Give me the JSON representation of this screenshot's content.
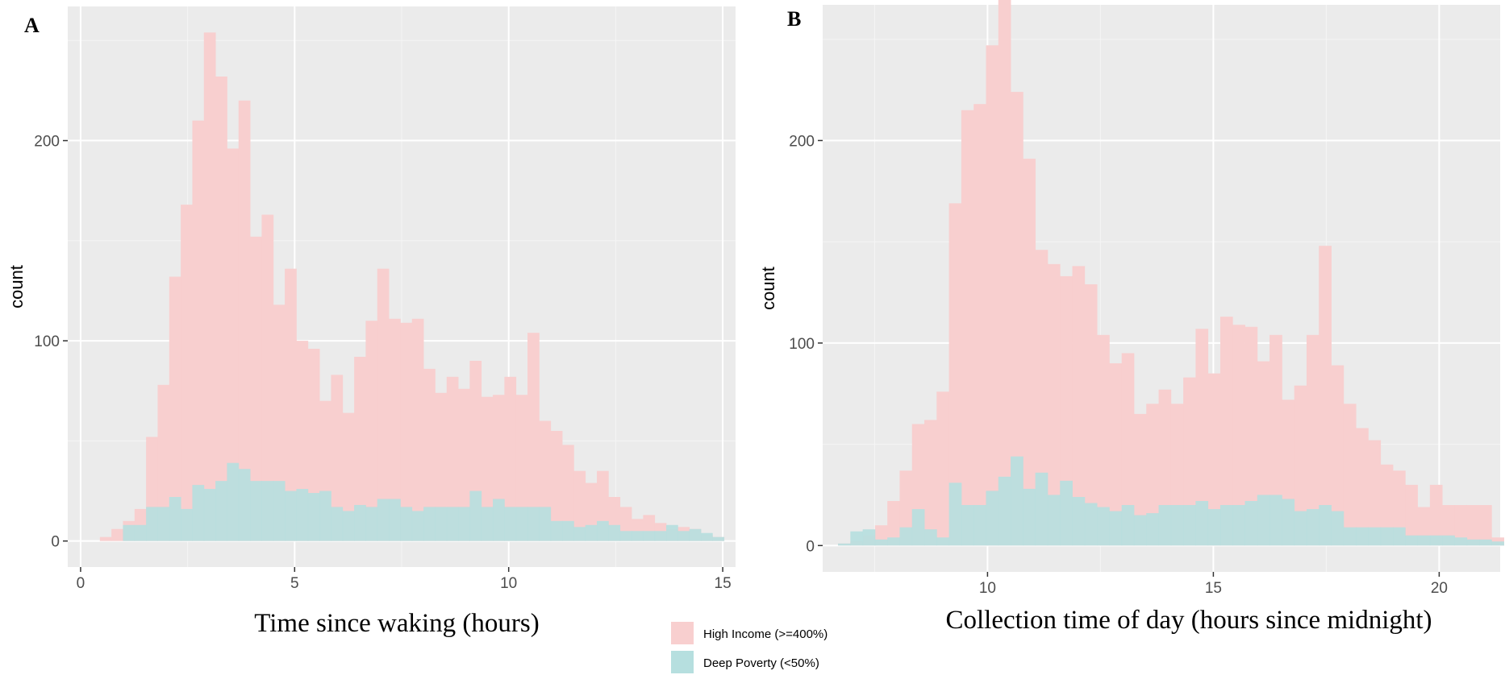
{
  "chart_data": [
    {
      "type": "bar",
      "panel": "A",
      "xlabel": "Time since waking (hours)",
      "ylabel": "count",
      "xlim": [
        -0.3,
        15.3
      ],
      "ylim": [
        -13,
        267
      ],
      "xticks": [
        0,
        5,
        10,
        15
      ],
      "yticks": [
        0,
        100,
        200
      ],
      "bin_start": 0.45,
      "bin_width": 0.27,
      "series": [
        {
          "name": "High Income (>=400%)",
          "color": "#f8cfcf",
          "values": [
            2,
            6,
            10,
            16,
            52,
            78,
            132,
            168,
            210,
            254,
            232,
            196,
            220,
            152,
            163,
            118,
            136,
            100,
            96,
            70,
            83,
            64,
            92,
            110,
            136,
            111,
            109,
            111,
            86,
            74,
            82,
            76,
            90,
            72,
            73,
            82,
            73,
            104,
            60,
            55,
            48,
            35,
            29,
            35,
            22,
            17,
            11,
            13,
            9,
            6,
            7,
            6,
            3,
            2
          ]
        },
        {
          "name": "Deep Poverty (<50%)",
          "color": "#b6dfdf",
          "values": [
            0,
            0,
            8,
            8,
            17,
            17,
            22,
            16,
            28,
            26,
            30,
            39,
            36,
            30,
            30,
            30,
            25,
            26,
            24,
            25,
            17,
            15,
            18,
            17,
            21,
            21,
            17,
            15,
            17,
            17,
            17,
            17,
            25,
            17,
            21,
            17,
            17,
            17,
            17,
            10,
            10,
            7,
            8,
            10,
            8,
            5,
            5,
            5,
            5,
            8,
            5,
            6,
            4,
            2
          ]
        }
      ]
    },
    {
      "type": "bar",
      "panel": "B",
      "xlabel": "Collection time of day (hours since midnight)",
      "ylabel": "count",
      "xlim": [
        6.35,
        21.35
      ],
      "ylim": [
        -13,
        267
      ],
      "xticks": [
        10,
        15,
        20
      ],
      "yticks": [
        0,
        100,
        200
      ],
      "bin_start": 6.69,
      "bin_width": 0.273,
      "series": [
        {
          "name": "High Income (>=400%)",
          "color": "#f8cfcf",
          "values": [
            1,
            2,
            5,
            10,
            22,
            37,
            60,
            62,
            76,
            169,
            215,
            218,
            247,
            273,
            224,
            191,
            146,
            139,
            133,
            138,
            129,
            104,
            90,
            95,
            65,
            70,
            77,
            70,
            83,
            107,
            85,
            113,
            109,
            108,
            91,
            104,
            72,
            79,
            104,
            148,
            89,
            70,
            58,
            52,
            40,
            37,
            30,
            19,
            30,
            20,
            20,
            20,
            20,
            4
          ]
        },
        {
          "name": "Deep Poverty (<50%)",
          "color": "#b6dfdf",
          "values": [
            1,
            7,
            8,
            3,
            4,
            9,
            18,
            8,
            4,
            31,
            20,
            20,
            27,
            34,
            44,
            28,
            36,
            25,
            32,
            24,
            21,
            19,
            17,
            20,
            15,
            16,
            20,
            20,
            20,
            22,
            18,
            20,
            20,
            22,
            25,
            25,
            23,
            17,
            18,
            20,
            17,
            9,
            9,
            9,
            9,
            9,
            5,
            5,
            5,
            5,
            4,
            3,
            3,
            2
          ]
        }
      ]
    }
  ],
  "legend": {
    "items": [
      {
        "label": "High Income (>=400%)",
        "color": "#f8cfcf"
      },
      {
        "label": "Deep Poverty (<50%)",
        "color": "#b6dfdf"
      }
    ]
  }
}
